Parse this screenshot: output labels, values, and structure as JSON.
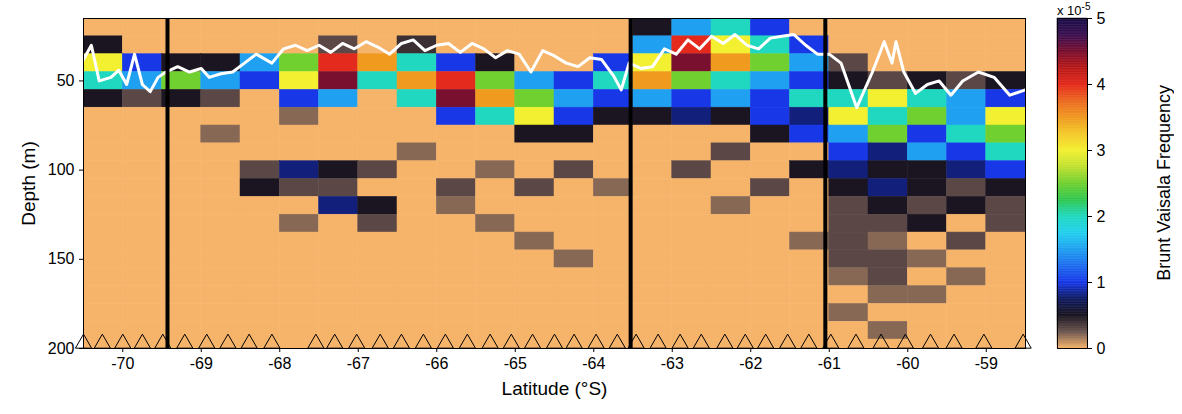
{
  "chart_data": {
    "type": "heatmap",
    "xlabel": "Latitude (°S)",
    "ylabel": "Depth (m)",
    "xlim": [
      -70.5,
      -58.5
    ],
    "xticks": [
      -70,
      -69,
      -68,
      -67,
      -66,
      -65,
      -64,
      -63,
      -62,
      -61,
      -60,
      -59
    ],
    "ylim": [
      15,
      200
    ],
    "yticks": [
      50,
      100,
      150,
      200
    ],
    "x_edges": [
      -70.5,
      -70,
      -69.5,
      -69,
      -68.5,
      -68,
      -67.5,
      -67,
      -66.5,
      -66,
      -65.5,
      -65,
      -64.5,
      -64,
      -63.5,
      -63,
      -62.5,
      -62,
      -61.5,
      -61,
      -60.5,
      -60,
      -59.5,
      -59,
      -58.5
    ],
    "y_edges": [
      15,
      25,
      35,
      45,
      55,
      65,
      75,
      85,
      95,
      105,
      115,
      125,
      135,
      145,
      155,
      165,
      175,
      185,
      195,
      200
    ],
    "cells": [
      [
        0,
        0,
        0,
        0,
        0,
        0,
        0,
        0,
        0,
        0,
        0,
        0,
        0,
        0,
        0.5,
        1.5,
        2,
        1,
        0,
        0,
        0,
        0,
        0,
        0
      ],
      [
        0.5,
        0,
        0,
        0,
        0,
        0,
        0.3,
        0,
        0.4,
        0,
        0,
        0,
        0,
        0,
        1.5,
        4,
        3,
        2,
        1,
        0,
        0,
        0,
        0,
        0
      ],
      [
        3,
        1,
        0.5,
        0.5,
        1.5,
        2.5,
        4,
        3.5,
        2,
        1,
        0.5,
        0,
        0,
        1,
        3,
        4.5,
        3.5,
        2.5,
        1.5,
        0.3,
        0,
        0,
        0,
        0
      ],
      [
        2,
        1.5,
        2.5,
        1.5,
        1,
        3,
        4.5,
        2,
        3.5,
        4,
        2.5,
        1.5,
        1,
        2,
        3.5,
        2.5,
        2,
        1.5,
        1,
        0.5,
        0.3,
        0.5,
        0.3,
        0.5
      ],
      [
        0.5,
        0.3,
        0.5,
        0.3,
        0,
        1,
        1.5,
        0,
        2,
        4.5,
        3.5,
        2.5,
        1.5,
        1,
        1.5,
        1,
        1.5,
        1,
        2,
        2,
        3,
        2,
        1.5,
        1
      ],
      [
        0,
        0,
        0,
        0,
        0,
        0.2,
        0,
        0,
        0,
        1,
        2,
        3,
        1,
        0.5,
        0.5,
        0.8,
        0.5,
        1,
        0.8,
        3,
        2,
        2.5,
        1.5,
        3
      ],
      [
        0,
        0,
        0,
        0.2,
        0,
        0,
        0,
        0,
        0,
        0,
        0,
        0.5,
        0.5,
        0,
        0,
        0,
        0,
        0.5,
        1,
        1.5,
        2.5,
        1,
        2,
        2.5
      ],
      [
        0,
        0,
        0,
        0,
        0,
        0,
        0,
        0,
        0.2,
        0,
        0,
        0,
        0,
        0,
        0,
        0,
        0.3,
        0,
        0,
        1,
        0.8,
        1.5,
        1,
        2
      ],
      [
        0,
        0,
        0,
        0,
        0.3,
        0.8,
        0.5,
        0.3,
        0,
        0,
        0.2,
        0,
        0.3,
        0,
        0,
        0.3,
        0,
        0,
        0.5,
        0.8,
        0.5,
        0.5,
        0.8,
        1
      ],
      [
        0,
        0,
        0,
        0,
        0.5,
        0.3,
        0.3,
        0,
        0,
        0.3,
        0,
        0.3,
        0,
        0.2,
        0,
        0,
        0,
        0.3,
        0,
        0.5,
        0.8,
        0.5,
        0.3,
        0.5
      ],
      [
        0,
        0,
        0,
        0,
        0,
        0,
        0.8,
        0.5,
        0,
        0.2,
        0,
        0,
        0,
        0,
        0,
        0,
        0.2,
        0,
        0,
        0.3,
        0.5,
        0.3,
        0.5,
        0.3
      ],
      [
        0,
        0,
        0,
        0,
        0,
        0.2,
        0,
        0.3,
        0,
        0,
        0.2,
        0,
        0,
        0,
        0,
        0,
        0,
        0,
        0,
        0.3,
        0.3,
        0.5,
        0,
        0.3
      ],
      [
        0,
        0,
        0,
        0,
        0,
        0,
        0,
        0,
        0,
        0,
        0,
        0.2,
        0,
        0,
        0,
        0,
        0,
        0,
        0.2,
        0.3,
        0.2,
        0,
        0.3,
        0
      ],
      [
        0,
        0,
        0,
        0,
        0,
        0,
        0,
        0,
        0,
        0,
        0,
        0,
        0.2,
        0,
        0,
        0,
        0,
        0,
        0,
        0.3,
        0.3,
        0.2,
        0,
        0
      ],
      [
        0,
        0,
        0,
        0,
        0,
        0,
        0,
        0,
        0,
        0,
        0,
        0,
        0,
        0,
        0,
        0,
        0,
        0,
        0,
        0.2,
        0.3,
        0,
        0.2,
        0
      ],
      [
        0,
        0,
        0,
        0,
        0,
        0,
        0,
        0,
        0,
        0,
        0,
        0,
        0,
        0,
        0,
        0,
        0,
        0,
        0,
        0,
        0.2,
        0.2,
        0,
        0
      ],
      [
        0,
        0,
        0,
        0,
        0,
        0,
        0,
        0,
        0,
        0,
        0,
        0,
        0,
        0,
        0,
        0,
        0,
        0,
        0,
        0.2,
        0,
        0,
        0,
        0
      ],
      [
        0,
        0,
        0,
        0,
        0,
        0,
        0,
        0,
        0,
        0,
        0,
        0,
        0,
        0,
        0,
        0,
        0,
        0,
        0,
        0,
        0.2,
        0,
        0,
        0
      ],
      [
        0,
        0,
        0,
        0,
        0,
        0,
        0,
        0,
        0,
        0,
        0,
        0,
        0,
        0,
        0,
        0,
        0,
        0,
        0,
        0,
        0,
        0,
        0,
        0
      ]
    ],
    "colorbar": {
      "label": "Brunt Vaisala Frequency",
      "range": [
        0,
        5
      ],
      "ticks": [
        0,
        1,
        2,
        3,
        4,
        5
      ],
      "multiplier_label": "x 10",
      "multiplier_exponent": -5,
      "colors": [
        "#f6b46a",
        "#6b5550",
        "#1a1520",
        "#101a60",
        "#1838e8",
        "#1e6cf0",
        "#20a0f0",
        "#22d0ee",
        "#20d8c0",
        "#30c850",
        "#70d030",
        "#c0e030",
        "#f2f030",
        "#f4c828",
        "#f09a20",
        "#ec6820",
        "#e42a1c",
        "#b81818",
        "#7a1030",
        "#3a1050",
        "#1a0e48"
      ]
    },
    "line": {
      "type": "line",
      "color": "#ffffff",
      "x": [
        -70.5,
        -70.4,
        -70.3,
        -70.15,
        -70.05,
        -69.95,
        -69.85,
        -69.75,
        -69.65,
        -69.55,
        -69.45,
        -69.3,
        -69.15,
        -69,
        -68.9,
        -68.75,
        -68.6,
        -68.45,
        -68.3,
        -68.1,
        -67.95,
        -67.8,
        -67.65,
        -67.5,
        -67.35,
        -67.2,
        -67.05,
        -66.9,
        -66.75,
        -66.6,
        -66.45,
        -66.3,
        -66.15,
        -66,
        -65.85,
        -65.7,
        -65.55,
        -65.4,
        -65.25,
        -65.1,
        -64.95,
        -64.8,
        -64.65,
        -64.5,
        -64.35,
        -64.2,
        -64.05,
        -63.9,
        -63.75,
        -63.65,
        -63.55,
        -63.4,
        -63.25,
        -63.1,
        -62.95,
        -62.8,
        -62.65,
        -62.5,
        -62.35,
        -62.2,
        -62.05,
        -61.9,
        -61.75,
        -61.6,
        -61.45,
        -61.3,
        -61.15,
        -61,
        -60.85,
        -60.65,
        -60.45,
        -60.3,
        -60.2,
        -60.15,
        -60.05,
        -59.9,
        -59.75,
        -59.6,
        -59.45,
        -59.3,
        -59.1,
        -58.9,
        -58.7,
        -58.5
      ],
      "values": [
        38,
        30,
        50,
        48,
        44,
        52,
        35,
        52,
        56,
        48,
        45,
        42,
        45,
        43,
        48,
        46,
        45,
        40,
        35,
        40,
        32,
        30,
        33,
        30,
        34,
        29,
        32,
        28,
        31,
        35,
        29,
        27,
        33,
        30,
        29,
        34,
        29,
        32,
        37,
        33,
        35,
        45,
        33,
        36,
        40,
        42,
        37,
        38,
        47,
        55,
        40,
        43,
        42,
        32,
        35,
        27,
        32,
        25,
        29,
        24,
        30,
        32,
        26,
        25,
        24,
        30,
        35,
        35,
        40,
        65,
        45,
        28,
        40,
        28,
        45,
        57,
        52,
        50,
        58,
        50,
        45,
        48,
        58,
        55
      ]
    },
    "vertical_lines": {
      "x": [
        -69.43,
        -63.53,
        -61.05
      ],
      "color": "#000000"
    },
    "stations": {
      "marker": "triangle",
      "color": "#000000",
      "x": [
        -70.5,
        -70.26,
        -70,
        -69.75,
        -69.49,
        -69.21,
        -68.93,
        -68.66,
        -68.39,
        -68.1,
        -67.54,
        -67.3,
        -67.02,
        -66.72,
        -66.45,
        -66.17,
        -65.89,
        -65.61,
        -65.32,
        -65.05,
        -64.78,
        -64.5,
        -64.25,
        -63.97,
        -63.7,
        -63.46,
        -63.18,
        -62.9,
        -62.63,
        -62.33,
        -62.07,
        -61.81,
        -61.53,
        -61.26,
        -60.98,
        -60.66,
        -60.34,
        -60.03,
        -59.71,
        -59.41,
        -59.03,
        -58.53
      ]
    }
  }
}
